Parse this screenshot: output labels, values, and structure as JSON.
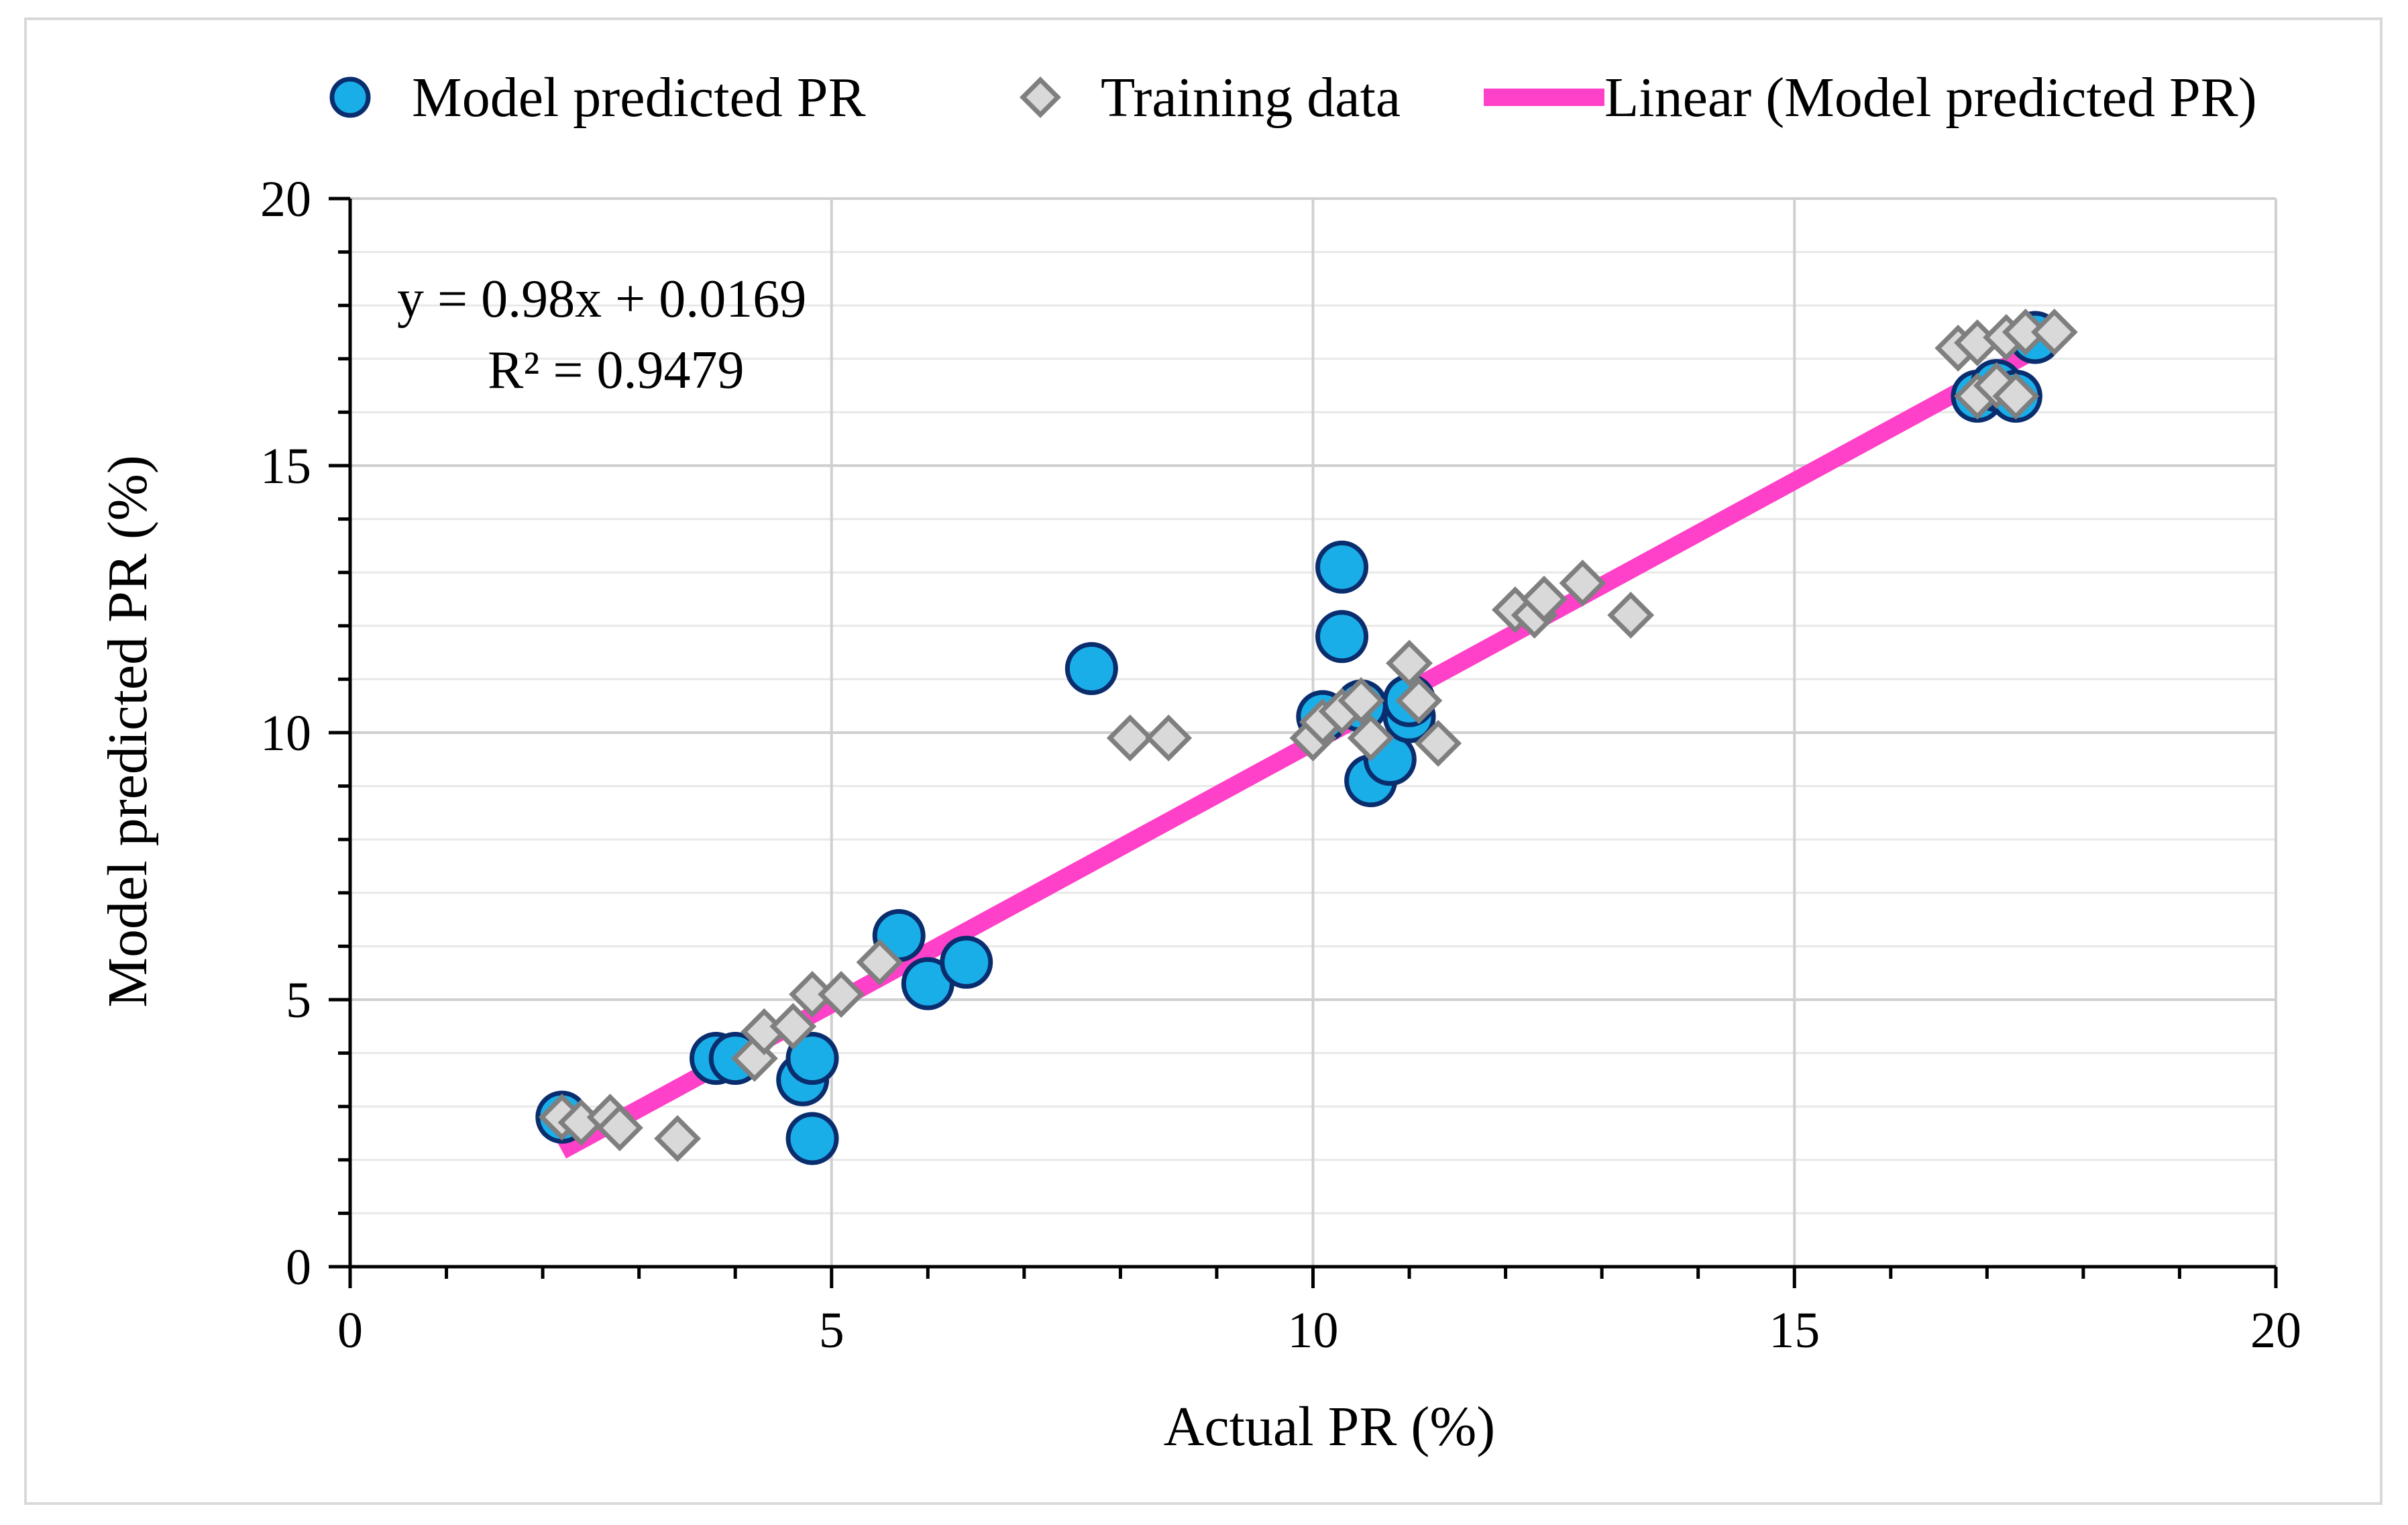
{
  "chart_data": {
    "type": "scatter",
    "xlabel": "Actual PR (%)",
    "ylabel": "Model predicted PR (%)",
    "xlim": [
      0,
      20
    ],
    "ylim": [
      0,
      20
    ],
    "x_ticks": [
      "0",
      "5",
      "10",
      "15",
      "20"
    ],
    "y_ticks": [
      "0",
      "5",
      "10",
      "15",
      "20"
    ],
    "grid": true,
    "legend_position": "top",
    "annotations": {
      "equation": "y = 0.98x + 0.0169",
      "r_squared": "R² = 0.9479"
    },
    "colors": {
      "model": "#1aaee8",
      "model_edge": "#0a2d6e",
      "training": "#d9d9d9",
      "training_edge": "#7f7f7f",
      "trend": "#ff40c8",
      "grid": "#d9d9d9",
      "axis": "#000000"
    },
    "legend": [
      "Model predicted PR",
      "Training data",
      "Linear (Model predicted PR)"
    ],
    "series": [
      {
        "name": "Model predicted PR",
        "marker": "circle",
        "points": [
          [
            2.2,
            2.8
          ],
          [
            3.8,
            3.9
          ],
          [
            4.0,
            3.9
          ],
          [
            4.7,
            3.5
          ],
          [
            4.8,
            3.9
          ],
          [
            4.8,
            2.4
          ],
          [
            5.7,
            6.2
          ],
          [
            6.0,
            5.3
          ],
          [
            6.4,
            5.7
          ],
          [
            7.7,
            11.2
          ],
          [
            10.1,
            10.3
          ],
          [
            10.3,
            13.1
          ],
          [
            10.3,
            11.8
          ],
          [
            10.5,
            10.5
          ],
          [
            10.6,
            9.1
          ],
          [
            10.8,
            9.5
          ],
          [
            11.0,
            10.3
          ],
          [
            11.0,
            10.6
          ],
          [
            16.9,
            16.3
          ],
          [
            17.1,
            16.5
          ],
          [
            17.3,
            16.3
          ],
          [
            17.5,
            17.4
          ]
        ]
      },
      {
        "name": "Training data",
        "marker": "diamond",
        "points": [
          [
            2.2,
            2.8
          ],
          [
            2.4,
            2.7
          ],
          [
            2.7,
            2.8
          ],
          [
            2.8,
            2.6
          ],
          [
            3.4,
            2.4
          ],
          [
            4.2,
            3.9
          ],
          [
            4.3,
            4.4
          ],
          [
            4.6,
            4.5
          ],
          [
            4.8,
            5.1
          ],
          [
            5.1,
            5.1
          ],
          [
            5.5,
            5.7
          ],
          [
            8.1,
            9.9
          ],
          [
            8.5,
            9.9
          ],
          [
            10.0,
            9.9
          ],
          [
            10.1,
            10.2
          ],
          [
            10.3,
            10.4
          ],
          [
            10.5,
            10.6
          ],
          [
            10.6,
            9.9
          ],
          [
            11.0,
            11.3
          ],
          [
            11.1,
            10.6
          ],
          [
            11.3,
            9.8
          ],
          [
            12.1,
            12.3
          ],
          [
            12.3,
            12.2
          ],
          [
            12.4,
            12.5
          ],
          [
            12.8,
            12.8
          ],
          [
            13.3,
            12.2
          ],
          [
            16.7,
            17.2
          ],
          [
            16.9,
            17.3
          ],
          [
            16.9,
            16.3
          ],
          [
            17.1,
            16.5
          ],
          [
            17.2,
            17.4
          ],
          [
            17.3,
            16.3
          ],
          [
            17.4,
            17.5
          ],
          [
            17.7,
            17.5
          ]
        ]
      },
      {
        "name": "Linear (Model predicted PR)",
        "type": "line",
        "points": [
          [
            2.2,
            2.17
          ],
          [
            17.6,
            17.26
          ]
        ]
      }
    ]
  }
}
